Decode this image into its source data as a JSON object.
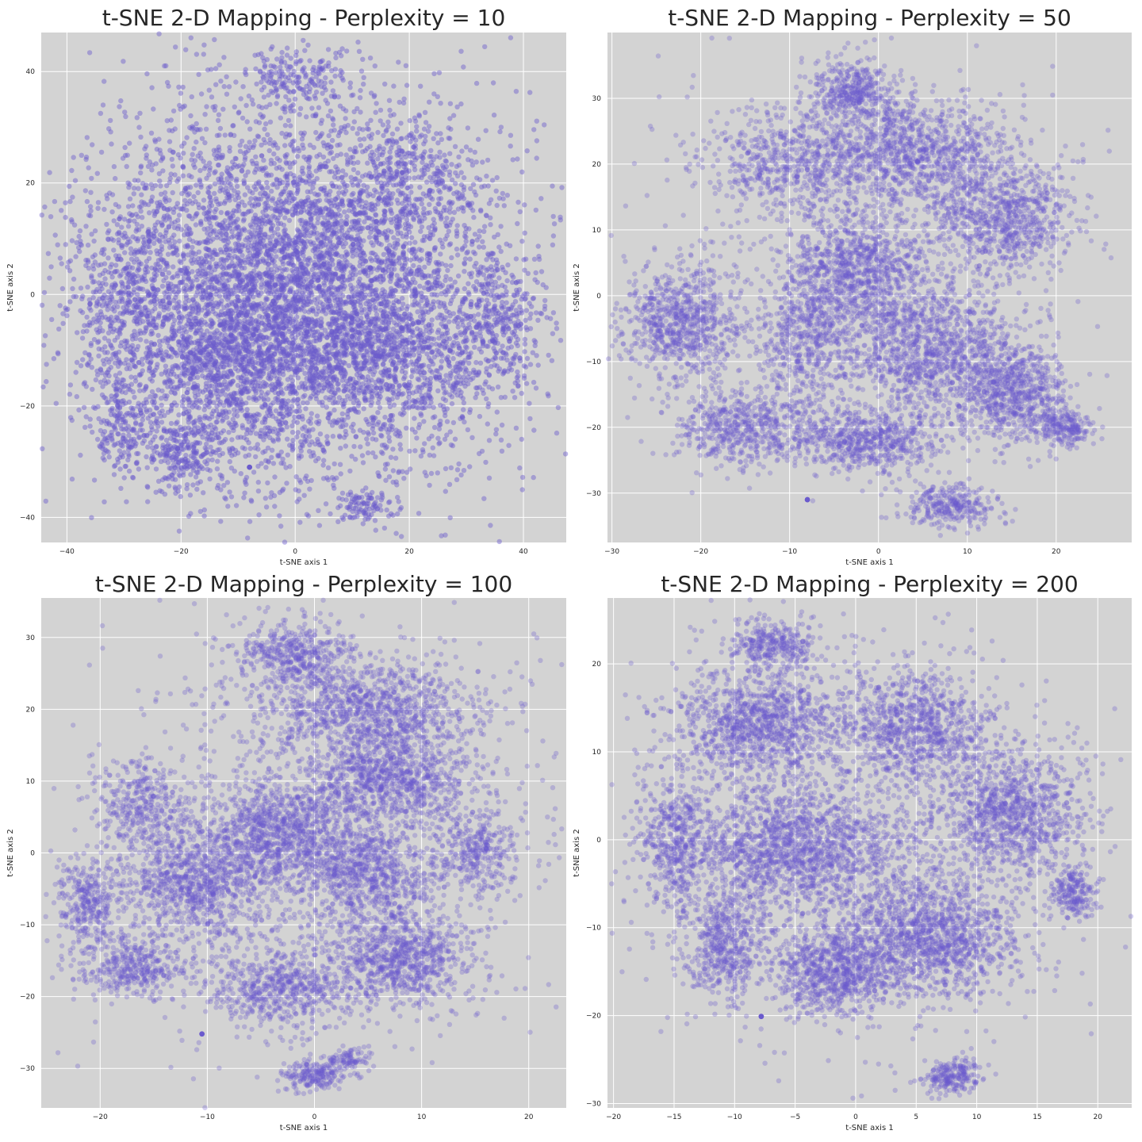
{
  "chart_data": [
    {
      "type": "scatter",
      "title": "t-SNE 2-D Mapping - Perplexity = 10",
      "xlabel": "t-SNE axis 1",
      "ylabel": "t-SNE axis 2",
      "xlim": [
        -44.5,
        47.5
      ],
      "ylim": [
        -44.5,
        47
      ],
      "xticks": [
        -40,
        -20,
        0,
        20,
        40
      ],
      "yticks": [
        -40,
        -20,
        0,
        20,
        40
      ],
      "grid": true,
      "point_color": "#6a5acd",
      "point_alpha": 0.45,
      "point_count": 9000,
      "highlight_points": [
        [
          -8,
          -31
        ]
      ],
      "clusters": [
        {
          "x": 0,
          "y": 0,
          "sx": 18,
          "sy": 17,
          "w": 0.7
        },
        {
          "x": -10,
          "y": -12,
          "sx": 7,
          "sy": 7,
          "w": 0.06
        },
        {
          "x": 18,
          "y": -10,
          "sx": 8,
          "sy": 7,
          "w": 0.06
        },
        {
          "x": -28,
          "y": -2,
          "sx": 6,
          "sy": 9,
          "w": 0.05
        },
        {
          "x": 36,
          "y": -6,
          "sx": 4,
          "sy": 6,
          "w": 0.03
        },
        {
          "x": 0,
          "y": 39,
          "sx": 5,
          "sy": 2.5,
          "w": 0.02
        },
        {
          "x": 12,
          "y": -38,
          "sx": 3,
          "sy": 1.5,
          "w": 0.01
        },
        {
          "x": -30,
          "y": -24,
          "sx": 3,
          "sy": 4,
          "w": 0.02
        },
        {
          "x": -20,
          "y": -28,
          "sx": 3,
          "sy": 3,
          "w": 0.02
        },
        {
          "x": 20,
          "y": 22,
          "sx": 5,
          "sy": 5,
          "w": 0.03
        }
      ]
    },
    {
      "type": "scatter",
      "title": "t-SNE 2-D Mapping - Perplexity = 50",
      "xlabel": "t-SNE axis 1",
      "ylabel": "t-SNE axis 2",
      "xlim": [
        -30.5,
        28.5
      ],
      "ylim": [
        -37.5,
        40
      ],
      "xticks": [
        -30,
        -20,
        -10,
        0,
        10,
        20
      ],
      "yticks": [
        -30,
        -20,
        -10,
        0,
        10,
        20,
        30
      ],
      "grid": true,
      "point_color": "#6a5acd",
      "point_alpha": 0.3,
      "point_count": 9000,
      "highlight_points": [
        [
          -8,
          -31
        ]
      ],
      "clusters": [
        {
          "x": -3,
          "y": 31,
          "sx": 2.5,
          "sy": 2.5,
          "w": 0.04
        },
        {
          "x": 4,
          "y": 22,
          "sx": 6,
          "sy": 4,
          "w": 0.1
        },
        {
          "x": -10,
          "y": 20,
          "sx": 5,
          "sy": 4,
          "w": 0.06
        },
        {
          "x": 14,
          "y": 12,
          "sx": 4,
          "sy": 4,
          "w": 0.08
        },
        {
          "x": -2,
          "y": 4,
          "sx": 4,
          "sy": 4,
          "w": 0.09
        },
        {
          "x": -22,
          "y": -4,
          "sx": 3.5,
          "sy": 4.5,
          "w": 0.08
        },
        {
          "x": 6,
          "y": -8,
          "sx": 5,
          "sy": 5,
          "w": 0.12
        },
        {
          "x": 15,
          "y": -15,
          "sx": 3,
          "sy": 3.5,
          "w": 0.07
        },
        {
          "x": -1,
          "y": -22,
          "sx": 4,
          "sy": 2.5,
          "w": 0.06
        },
        {
          "x": -15,
          "y": -20,
          "sx": 4,
          "sy": 3,
          "w": 0.06
        },
        {
          "x": 8,
          "y": -32,
          "sx": 2.5,
          "sy": 1.5,
          "w": 0.03
        },
        {
          "x": 21,
          "y": -20,
          "sx": 1.5,
          "sy": 1.5,
          "w": 0.02
        },
        {
          "x": -8,
          "y": -6,
          "sx": 3,
          "sy": 6,
          "w": 0.06
        },
        {
          "x": 0,
          "y": 8,
          "sx": 14,
          "sy": 14,
          "w": 0.03
        }
      ]
    },
    {
      "type": "scatter",
      "title": "t-SNE 2-D Mapping - Perplexity = 100",
      "xlabel": "t-SNE axis 1",
      "ylabel": "t-SNE axis 2",
      "xlim": [
        -25.5,
        23.5
      ],
      "ylim": [
        -35.5,
        35.5
      ],
      "xticks": [
        -20,
        -10,
        0,
        10,
        20
      ],
      "yticks": [
        -30,
        -20,
        -10,
        0,
        10,
        20,
        30
      ],
      "grid": true,
      "point_color": "#6a5acd",
      "point_alpha": 0.3,
      "point_count": 9000,
      "highlight_points": [
        [
          -10.5,
          -25.2
        ]
      ],
      "clusters": [
        {
          "x": -2,
          "y": 28,
          "sx": 2.5,
          "sy": 2,
          "w": 0.04
        },
        {
          "x": 5,
          "y": 20,
          "sx": 5,
          "sy": 3.5,
          "w": 0.1
        },
        {
          "x": 7,
          "y": 10,
          "sx": 4,
          "sy": 3,
          "w": 0.08
        },
        {
          "x": -3,
          "y": 3,
          "sx": 3.5,
          "sy": 3.5,
          "w": 0.09
        },
        {
          "x": -11,
          "y": -4,
          "sx": 3.5,
          "sy": 4,
          "w": 0.09
        },
        {
          "x": 5,
          "y": -3,
          "sx": 3,
          "sy": 4,
          "w": 0.07
        },
        {
          "x": 8,
          "y": -15,
          "sx": 3.5,
          "sy": 3,
          "w": 0.08
        },
        {
          "x": -3,
          "y": -19,
          "sx": 3.5,
          "sy": 2.5,
          "w": 0.06
        },
        {
          "x": -17,
          "y": -16,
          "sx": 2.5,
          "sy": 2,
          "w": 0.04
        },
        {
          "x": -16,
          "y": 7,
          "sx": 2,
          "sy": 3,
          "w": 0.03
        },
        {
          "x": 0,
          "y": -31,
          "sx": 1.5,
          "sy": 1,
          "w": 0.02
        },
        {
          "x": 3,
          "y": -29,
          "sx": 1.2,
          "sy": 0.8,
          "w": 0.01
        },
        {
          "x": -21,
          "y": -7,
          "sx": 1.5,
          "sy": 3,
          "w": 0.03
        },
        {
          "x": 15,
          "y": 0,
          "sx": 2,
          "sy": 3,
          "w": 0.03
        },
        {
          "x": 0,
          "y": 2,
          "sx": 11,
          "sy": 14,
          "w": 0.12
        }
      ]
    },
    {
      "type": "scatter",
      "title": "t-SNE 2-D Mapping - Perplexity = 200",
      "xlabel": "t-SNE axis 1",
      "ylabel": "t-SNE axis 2",
      "xlim": [
        -20.5,
        22.8
      ],
      "ylim": [
        -30.5,
        27.5
      ],
      "xticks": [
        -20,
        -15,
        -10,
        -5,
        0,
        5,
        10,
        15,
        20
      ],
      "yticks": [
        -30,
        -20,
        -10,
        0,
        10,
        20
      ],
      "grid": true,
      "point_color": "#6a5acd",
      "point_alpha": 0.3,
      "point_count": 9000,
      "highlight_points": [
        [
          -7.8,
          -20.1
        ]
      ],
      "clusters": [
        {
          "x": -7,
          "y": 22,
          "sx": 1.8,
          "sy": 1.5,
          "w": 0.03
        },
        {
          "x": -8,
          "y": 13,
          "sx": 3.5,
          "sy": 3,
          "w": 0.09
        },
        {
          "x": 5,
          "y": 13,
          "sx": 3,
          "sy": 3,
          "w": 0.08
        },
        {
          "x": 13,
          "y": 3,
          "sx": 3,
          "sy": 3.5,
          "w": 0.09
        },
        {
          "x": -5,
          "y": -1,
          "sx": 4.5,
          "sy": 3.5,
          "w": 0.13
        },
        {
          "x": 6,
          "y": -11,
          "sx": 3.5,
          "sy": 3.5,
          "w": 0.11
        },
        {
          "x": -2,
          "y": -15,
          "sx": 2.5,
          "sy": 2.5,
          "w": 0.06
        },
        {
          "x": -11,
          "y": -12,
          "sx": 1.5,
          "sy": 3,
          "w": 0.04
        },
        {
          "x": -15,
          "y": 0,
          "sx": 1.5,
          "sy": 4,
          "w": 0.04
        },
        {
          "x": 8,
          "y": -27,
          "sx": 1.2,
          "sy": 1,
          "w": 0.02
        },
        {
          "x": 18,
          "y": -6,
          "sx": 1,
          "sy": 1.5,
          "w": 0.02
        },
        {
          "x": 0,
          "y": 0,
          "sx": 9,
          "sy": 11,
          "w": 0.1
        }
      ]
    }
  ]
}
